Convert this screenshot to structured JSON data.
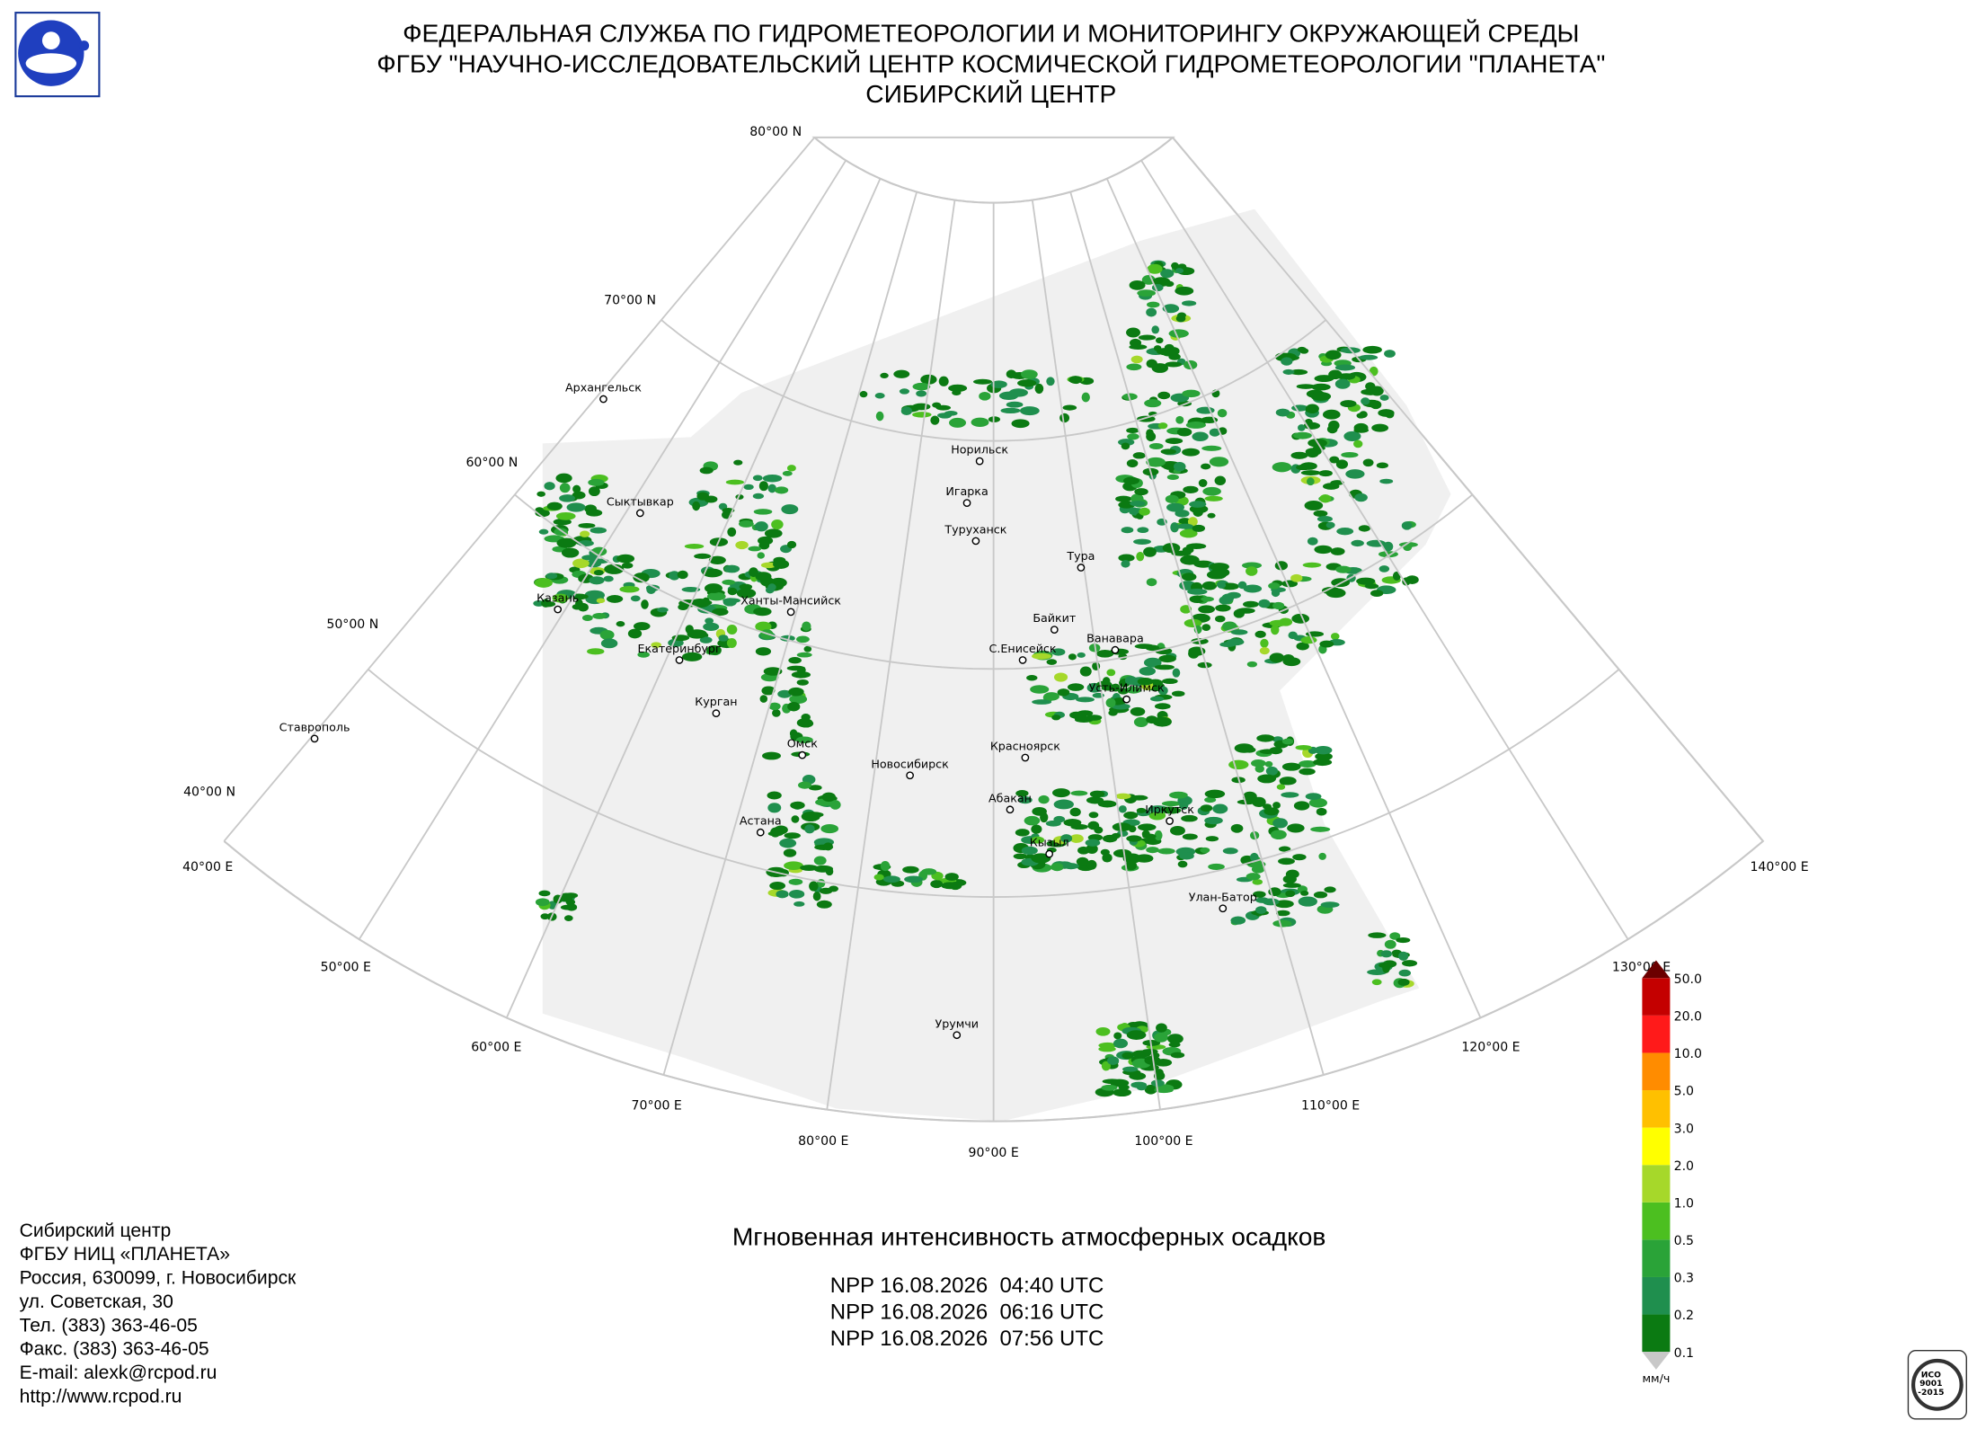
{
  "header": {
    "lines": [
      "ФЕДЕРАЛЬНАЯ СЛУЖБА ПО ГИДРОМЕТЕОРОЛОГИИ И МОНИТОРИНГУ ОКРУЖАЮЩЕЙ СРЕДЫ",
      "ФГБУ \"НАУЧНО-ИССЛЕДОВАТЕЛЬСКИЙ ЦЕНТР КОСМИЧЕСКОЙ ГИДРОМЕТЕОРОЛОГИИ \"ПЛАНЕТА\"",
      "СИБИРСКИЙ ЦЕНТР"
    ]
  },
  "map": {
    "parallel_labels": [
      "80°00 N",
      "70°00 N",
      "60°00 N",
      "50°00 N",
      "40°00 N"
    ],
    "meridian_labels": [
      "40°00 E",
      "50°00 E",
      "60°00 E",
      "70°00 E",
      "80°00 E",
      "90°00 E",
      "100°00 E",
      "110°00 E",
      "120°00 E",
      "130°00 E",
      "140°00 E"
    ],
    "cities": [
      "Архангельск",
      "Сыктывкар",
      "Казань",
      "Екатеринбург",
      "Курган",
      "Ставрополь",
      "Ханты-Мансийск",
      "Омск",
      "Астана",
      "Новосибирск",
      "Норильск",
      "Игарка",
      "Туруханск",
      "Тура",
      "Байкит",
      "Ванавара",
      "С.Енисейск",
      "Усть-Илимск",
      "Красноярск",
      "Абакан",
      "Иркутск",
      "Кызыл",
      "Улан-Батор",
      "Урумчи"
    ]
  },
  "legend": {
    "ticks": [
      "0.1",
      "0.2",
      "0.3",
      "0.5",
      "1.0",
      "2.0",
      "3.0",
      "5.0",
      "10.0",
      "20.0",
      "50.0"
    ],
    "colors": [
      "#0b7a12",
      "#1f8f4e",
      "#2aa338",
      "#4cbf20",
      "#a6d82a",
      "#ffff00",
      "#ffc000",
      "#ff8c00",
      "#ff1a1a",
      "#c40000"
    ],
    "over_color": "#6b0000",
    "under_color": "#c8c8c8",
    "unit": "мм/ч"
  },
  "caption": {
    "title": "Мгновенная интенсивность атмосферных осадков",
    "passes": [
      "NPP 16.08.2026  04:40 UTC",
      "NPP 16.08.2026  06:16 UTC",
      "NPP 16.08.2026  07:56 UTC"
    ]
  },
  "contacts": [
    "Сибирский центр",
    "ФГБУ НИЦ «ПЛАНЕТА»",
    "Россия, 630099, г. Новосибирск",
    "ул. Советская, 30",
    "Тел. (383) 363-46-05",
    "Факс. (383) 363-46-05",
    "E-mail: alexk@rcpod.ru",
    "http://www.rcpod.ru"
  ],
  "badge": {
    "lines": [
      "ИСО",
      "9001",
      "-2015"
    ]
  }
}
